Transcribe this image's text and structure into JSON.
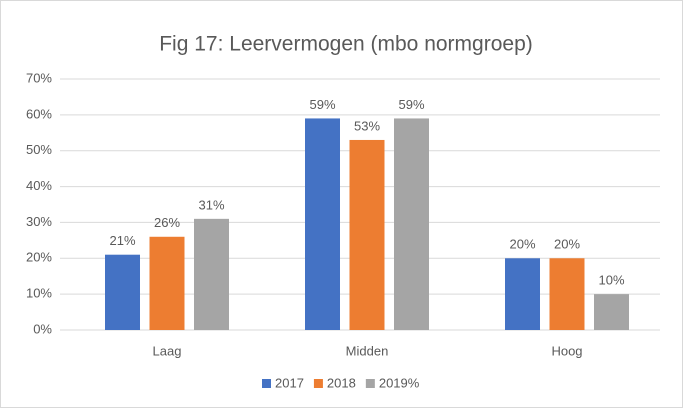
{
  "chart_data": {
    "type": "bar",
    "title": "Fig 17: Leervermogen (mbo normgroep)",
    "categories": [
      "Laag",
      "Midden",
      "Hoog"
    ],
    "series": [
      {
        "name": "2017",
        "color": "#4472c4",
        "values": [
          21,
          59,
          20
        ],
        "value_labels": [
          "21%",
          "59%",
          "20%"
        ]
      },
      {
        "name": "2018",
        "color": "#ed7d31",
        "values": [
          26,
          53,
          20
        ],
        "value_labels": [
          "26%",
          "53%",
          "20%"
        ]
      },
      {
        "name": "2019%",
        "color": "#a5a5a5",
        "values": [
          31,
          59,
          10
        ],
        "value_labels": [
          "31%",
          "59%",
          "10%"
        ]
      }
    ],
    "ylim": [
      0,
      70
    ],
    "yticks": [
      {
        "value": 0,
        "label": "0%"
      },
      {
        "value": 10,
        "label": "10%"
      },
      {
        "value": 20,
        "label": "20%"
      },
      {
        "value": 30,
        "label": "30%"
      },
      {
        "value": 40,
        "label": "40%"
      },
      {
        "value": 50,
        "label": "50%"
      },
      {
        "value": 60,
        "label": "60%"
      },
      {
        "value": 70,
        "label": "70%"
      }
    ],
    "grid": true,
    "legend": "bottom"
  }
}
